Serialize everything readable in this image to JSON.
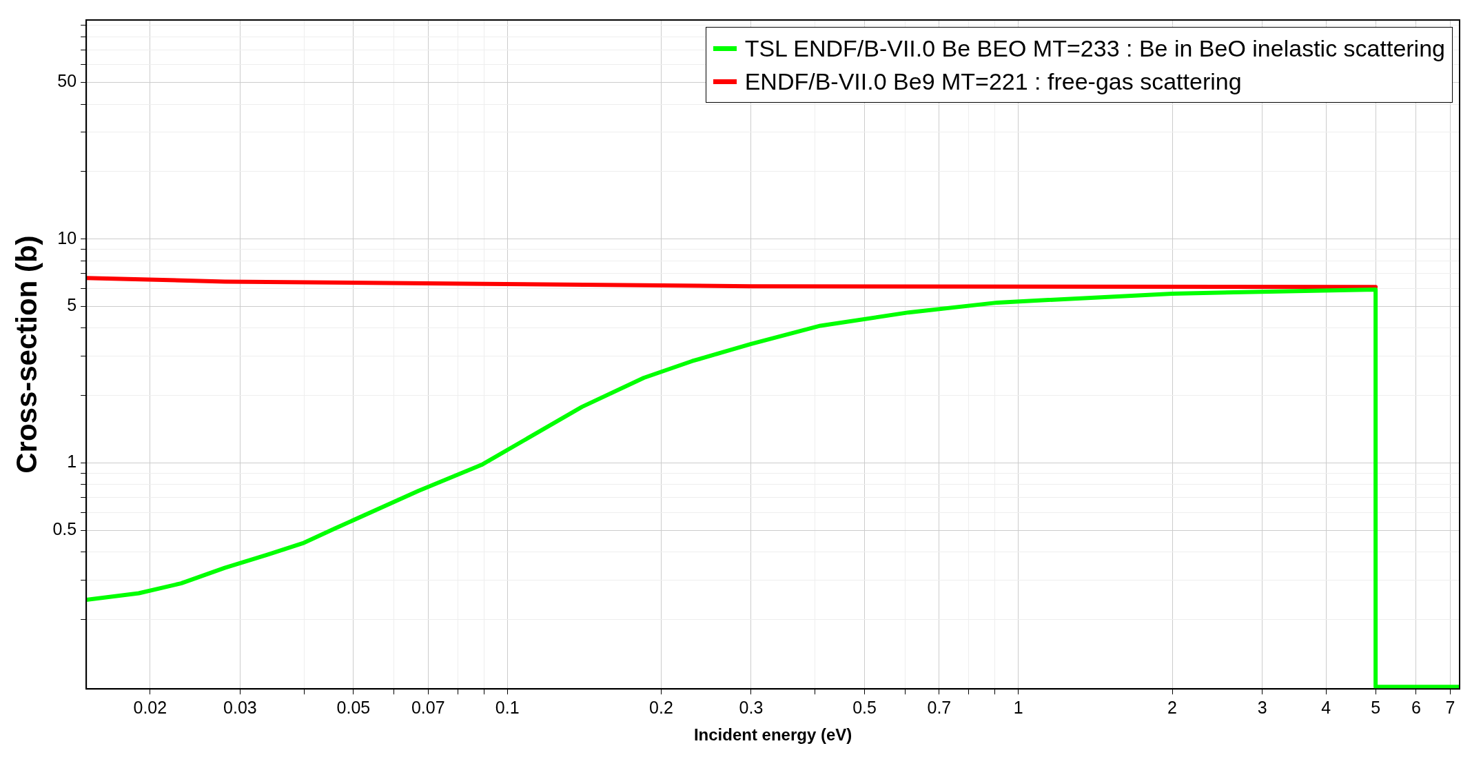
{
  "chart_data": {
    "type": "line",
    "xlabel": "Incident energy (eV)",
    "ylabel": "Cross-section (b)",
    "log": "xy",
    "grid": true,
    "legend": "top right",
    "marker": "none",
    "line_style": "solid",
    "xlim": [
      0.015,
      7.3
    ],
    "ylim": [
      0.098,
      95
    ],
    "xticks": [
      0.02,
      0.03,
      {
        "value": 0.04,
        "label": null
      },
      0.05,
      {
        "value": 0.06,
        "label": null
      },
      0.07,
      {
        "value": 0.08,
        "label": null
      },
      {
        "value": 0.09,
        "label": null
      },
      0.1,
      0.2,
      0.3,
      {
        "value": 0.4,
        "label": null
      },
      0.5,
      {
        "value": 0.6,
        "label": null
      },
      0.7,
      {
        "value": 0.8,
        "label": null
      },
      {
        "value": 0.9,
        "label": null
      },
      1,
      2,
      3,
      4,
      5,
      6,
      7
    ],
    "yticks": [
      {
        "value": 0.2,
        "label": null
      },
      {
        "value": 0.3,
        "label": null
      },
      {
        "value": 0.4,
        "label": null
      },
      0.5,
      {
        "value": 0.6,
        "label": null
      },
      {
        "value": 0.7,
        "label": null
      },
      {
        "value": 0.8,
        "label": null
      },
      {
        "value": 0.9,
        "label": null
      },
      1,
      {
        "value": 2,
        "label": null
      },
      {
        "value": 3,
        "label": null
      },
      {
        "value": 4,
        "label": null
      },
      5,
      {
        "value": 6,
        "label": null
      },
      {
        "value": 7,
        "label": null
      },
      {
        "value": 8,
        "label": null
      },
      {
        "value": 9,
        "label": null
      },
      10,
      {
        "value": 20,
        "label": null
      },
      {
        "value": 30,
        "label": null
      },
      {
        "value": 40,
        "label": null
      },
      50,
      {
        "value": 60,
        "label": null
      },
      {
        "value": 70,
        "label": null
      },
      {
        "value": 80,
        "label": null
      },
      {
        "value": 90,
        "label": null
      }
    ],
    "series": [
      {
        "name": "TSL ENDF/B-VII.0 Be BEO MT=233 : Be in BeO inelastic scattering",
        "color": "#00ff00",
        "x": [
          0.015,
          0.019,
          0.023,
          0.028,
          0.034,
          0.04,
          0.046,
          0.067,
          0.089,
          0.14,
          0.185,
          0.23,
          0.3,
          0.41,
          0.61,
          0.91,
          2,
          5,
          5,
          7.3
        ],
        "values": [
          0.245,
          0.262,
          0.29,
          0.34,
          0.39,
          0.44,
          0.51,
          0.75,
          0.98,
          1.78,
          2.4,
          2.85,
          3.4,
          4.1,
          4.7,
          5.2,
          5.7,
          5.95,
          0.1,
          0.1
        ]
      },
      {
        "name": "ENDF/B-VII.0 Be9 MT=221 : free-gas scattering",
        "color": "#ff0000",
        "x": [
          0.015,
          0.028,
          0.09,
          0.3,
          5
        ],
        "values": [
          6.7,
          6.45,
          6.3,
          6.15,
          6.1
        ]
      }
    ]
  }
}
